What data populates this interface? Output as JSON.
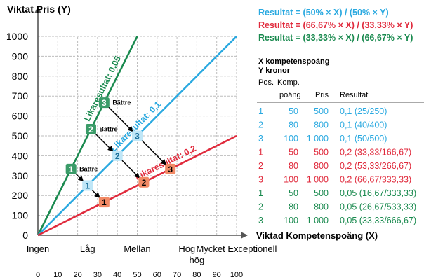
{
  "chart_data": {
    "type": "line",
    "title": "Viktat Pris (Y)",
    "xlabel": "Viktad Kompetenspoäng (X)",
    "ylabel": "Viktat Pris (Y)",
    "xlim": [
      0,
      100
    ],
    "ylim": [
      0,
      1000
    ],
    "x_ticks": [
      0,
      10,
      20,
      30,
      40,
      50,
      60,
      70,
      80,
      90,
      100
    ],
    "y_ticks": [
      0,
      100,
      200,
      300,
      400,
      500,
      600,
      700,
      800,
      900,
      1000
    ],
    "grid": true,
    "x_categories": [
      {
        "label": "Ingen",
        "x": 0
      },
      {
        "label": "Låg",
        "x": 25
      },
      {
        "label": "Mellan",
        "x": 50
      },
      {
        "label": "Hög",
        "x": 75
      },
      {
        "label": "Mycket Exceptionell",
        "x": 100
      },
      {
        "label": "hög",
        "x": 80
      }
    ],
    "series": [
      {
        "name": "Likaresultat: 0,05",
        "ratio": 0.05,
        "color": "#1a8a4f",
        "x": [
          0,
          50
        ],
        "y": [
          0,
          1000
        ]
      },
      {
        "name": "Likaresultat: 0,1",
        "ratio": 0.1,
        "color": "#2aa9e0",
        "x": [
          0,
          100
        ],
        "y": [
          0,
          1000
        ]
      },
      {
        "name": "Likaresultat: 0,2",
        "ratio": 0.2,
        "color": "#e02a3c",
        "x": [
          0,
          100
        ],
        "y": [
          0,
          500
        ]
      }
    ],
    "markers": [
      {
        "label": "1",
        "x": 16.67,
        "y": 333.33,
        "color": "#3a9b68",
        "text_color": "#ffffff",
        "note": "Bättre"
      },
      {
        "label": "2",
        "x": 26.67,
        "y": 533.33,
        "color": "#3a9b68",
        "text_color": "#ffffff",
        "note": "Bättre"
      },
      {
        "label": "3",
        "x": 33.33,
        "y": 666.67,
        "color": "#3a9b68",
        "text_color": "#ffffff",
        "note": "Bättre"
      },
      {
        "label": "1",
        "x": 25,
        "y": 250,
        "color": "#bfe6f7",
        "text_color": "#1a6f9a",
        "note": ""
      },
      {
        "label": "2",
        "x": 40,
        "y": 400,
        "color": "#bfe6f7",
        "text_color": "#1a6f9a",
        "note": ""
      },
      {
        "label": "3",
        "x": 50,
        "y": 500,
        "color": "#bfe6f7",
        "text_color": "#1a6f9a",
        "note": ""
      },
      {
        "label": "1",
        "x": 33.33,
        "y": 166.67,
        "color": "#f28a65",
        "text_color": "#000000",
        "note": ""
      },
      {
        "label": "2",
        "x": 53.33,
        "y": 266.67,
        "color": "#f28a65",
        "text_color": "#000000",
        "note": ""
      },
      {
        "label": "3",
        "x": 66.67,
        "y": 333.33,
        "color": "#f28a65",
        "text_color": "#000000",
        "note": ""
      }
    ],
    "arrows": [
      {
        "from": [
          33.33,
          666.67
        ],
        "to": [
          50,
          500
        ]
      },
      {
        "from": [
          50,
          500
        ],
        "to": [
          66.67,
          333.33
        ]
      },
      {
        "from": [
          26.67,
          533.33
        ],
        "to": [
          40,
          400
        ]
      },
      {
        "from": [
          40,
          400
        ],
        "to": [
          53.33,
          266.67
        ]
      },
      {
        "from": [
          16.67,
          333.33
        ],
        "to": [
          25,
          250
        ]
      },
      {
        "from": [
          25,
          250
        ],
        "to": [
          33.33,
          166.67
        ]
      }
    ]
  },
  "legend": {
    "items": [
      {
        "text": "Resultat = (50% × X) / (50% × Y)",
        "color": "#2aa9e0"
      },
      {
        "text": "Resultat = (66,67% × X) / (33,33% × Y)",
        "color": "#e02a3c"
      },
      {
        "text": "Resultat = (33,33% × X) / (66,67% × Y)",
        "color": "#1a8a4f"
      }
    ]
  },
  "table": {
    "note_x": "X kompetenspoäng",
    "note_y": "Y kronor",
    "headers": {
      "pos": "Pos.",
      "komp_line1": "Komp.",
      "komp_line2": "poäng",
      "pris": "Pris",
      "resultat": "Resultat"
    },
    "rows": [
      {
        "pos": "1",
        "komp": "50",
        "pris": "500",
        "resultat": "0,1 (25/250)",
        "color": "#2aa9e0"
      },
      {
        "pos": "2",
        "komp": "80",
        "pris": "800",
        "resultat": "0,1 (40/400)",
        "color": "#2aa9e0"
      },
      {
        "pos": "3",
        "komp": "100",
        "pris": "1 000",
        "resultat": "0,1 (50/500)",
        "color": "#2aa9e0"
      },
      {
        "pos": "1",
        "komp": "50",
        "pris": "500",
        "resultat": "0,2 (33,33/166,67)",
        "color": "#e02a3c"
      },
      {
        "pos": "2",
        "komp": "80",
        "pris": "800",
        "resultat": "0,2 (53,33/266,67)",
        "color": "#e02a3c"
      },
      {
        "pos": "3",
        "komp": "100",
        "pris": "1 000",
        "resultat": "0,2 (66,67/333,33)",
        "color": "#e02a3c"
      },
      {
        "pos": "1",
        "komp": "50",
        "pris": "500",
        "resultat": "0,05 (16,67/333,33)",
        "color": "#1a8a4f"
      },
      {
        "pos": "2",
        "komp": "80",
        "pris": "800",
        "resultat": "0,05 (26,67/533,33)",
        "color": "#1a8a4f"
      },
      {
        "pos": "3",
        "komp": "100",
        "pris": "1 000",
        "resultat": "0,05 (33,33/666,67)",
        "color": "#1a8a4f"
      }
    ]
  }
}
